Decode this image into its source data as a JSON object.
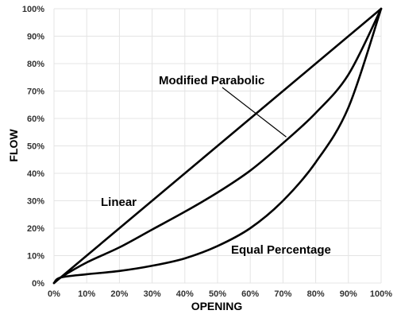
{
  "chart_data": {
    "type": "line",
    "title": "",
    "xlabel": "OPENING",
    "ylabel": "FLOW",
    "xlim": [
      0,
      100
    ],
    "ylim": [
      0,
      100
    ],
    "x_ticks": [
      "0%",
      "10%",
      "20%",
      "30%",
      "40%",
      "50%",
      "60%",
      "70%",
      "80%",
      "90%",
      "100%"
    ],
    "y_ticks": [
      "0%",
      "10%",
      "20%",
      "30%",
      "40%",
      "50%",
      "60%",
      "70%",
      "80%",
      "90%",
      "100%"
    ],
    "grid": true,
    "legend": "none",
    "series": [
      {
        "name": "Linear",
        "x": [
          0,
          2,
          10,
          20,
          30,
          40,
          50,
          60,
          70,
          80,
          90,
          100
        ],
        "y": [
          0,
          2,
          10,
          20,
          30,
          40,
          50,
          60,
          70,
          80,
          90,
          100
        ]
      },
      {
        "name": "Modified Parabolic",
        "x": [
          0,
          2,
          10,
          20,
          30,
          40,
          50,
          60,
          70,
          80,
          90,
          100
        ],
        "y": [
          0,
          2,
          7.5,
          13,
          19.5,
          26,
          33,
          41,
          51,
          62,
          76,
          100
        ]
      },
      {
        "name": "Equal Percentage",
        "x": [
          0,
          2,
          10,
          20,
          30,
          40,
          50,
          60,
          70,
          80,
          90,
          100
        ],
        "y": [
          0,
          2,
          3.2,
          4.4,
          6.3,
          9,
          13.5,
          20,
          30,
          44,
          64,
          100
        ]
      }
    ],
    "annotations": [
      {
        "text": "Linear",
        "target": "Linear"
      },
      {
        "text": "Modified Parabolic",
        "target": "Modified Parabolic",
        "arrow": true
      },
      {
        "text": "Equal Percentage",
        "target": "Equal Percentage"
      }
    ]
  },
  "colors": {
    "line": "#000000",
    "grid": "#e4e4e4",
    "tick_text": "#333333"
  }
}
